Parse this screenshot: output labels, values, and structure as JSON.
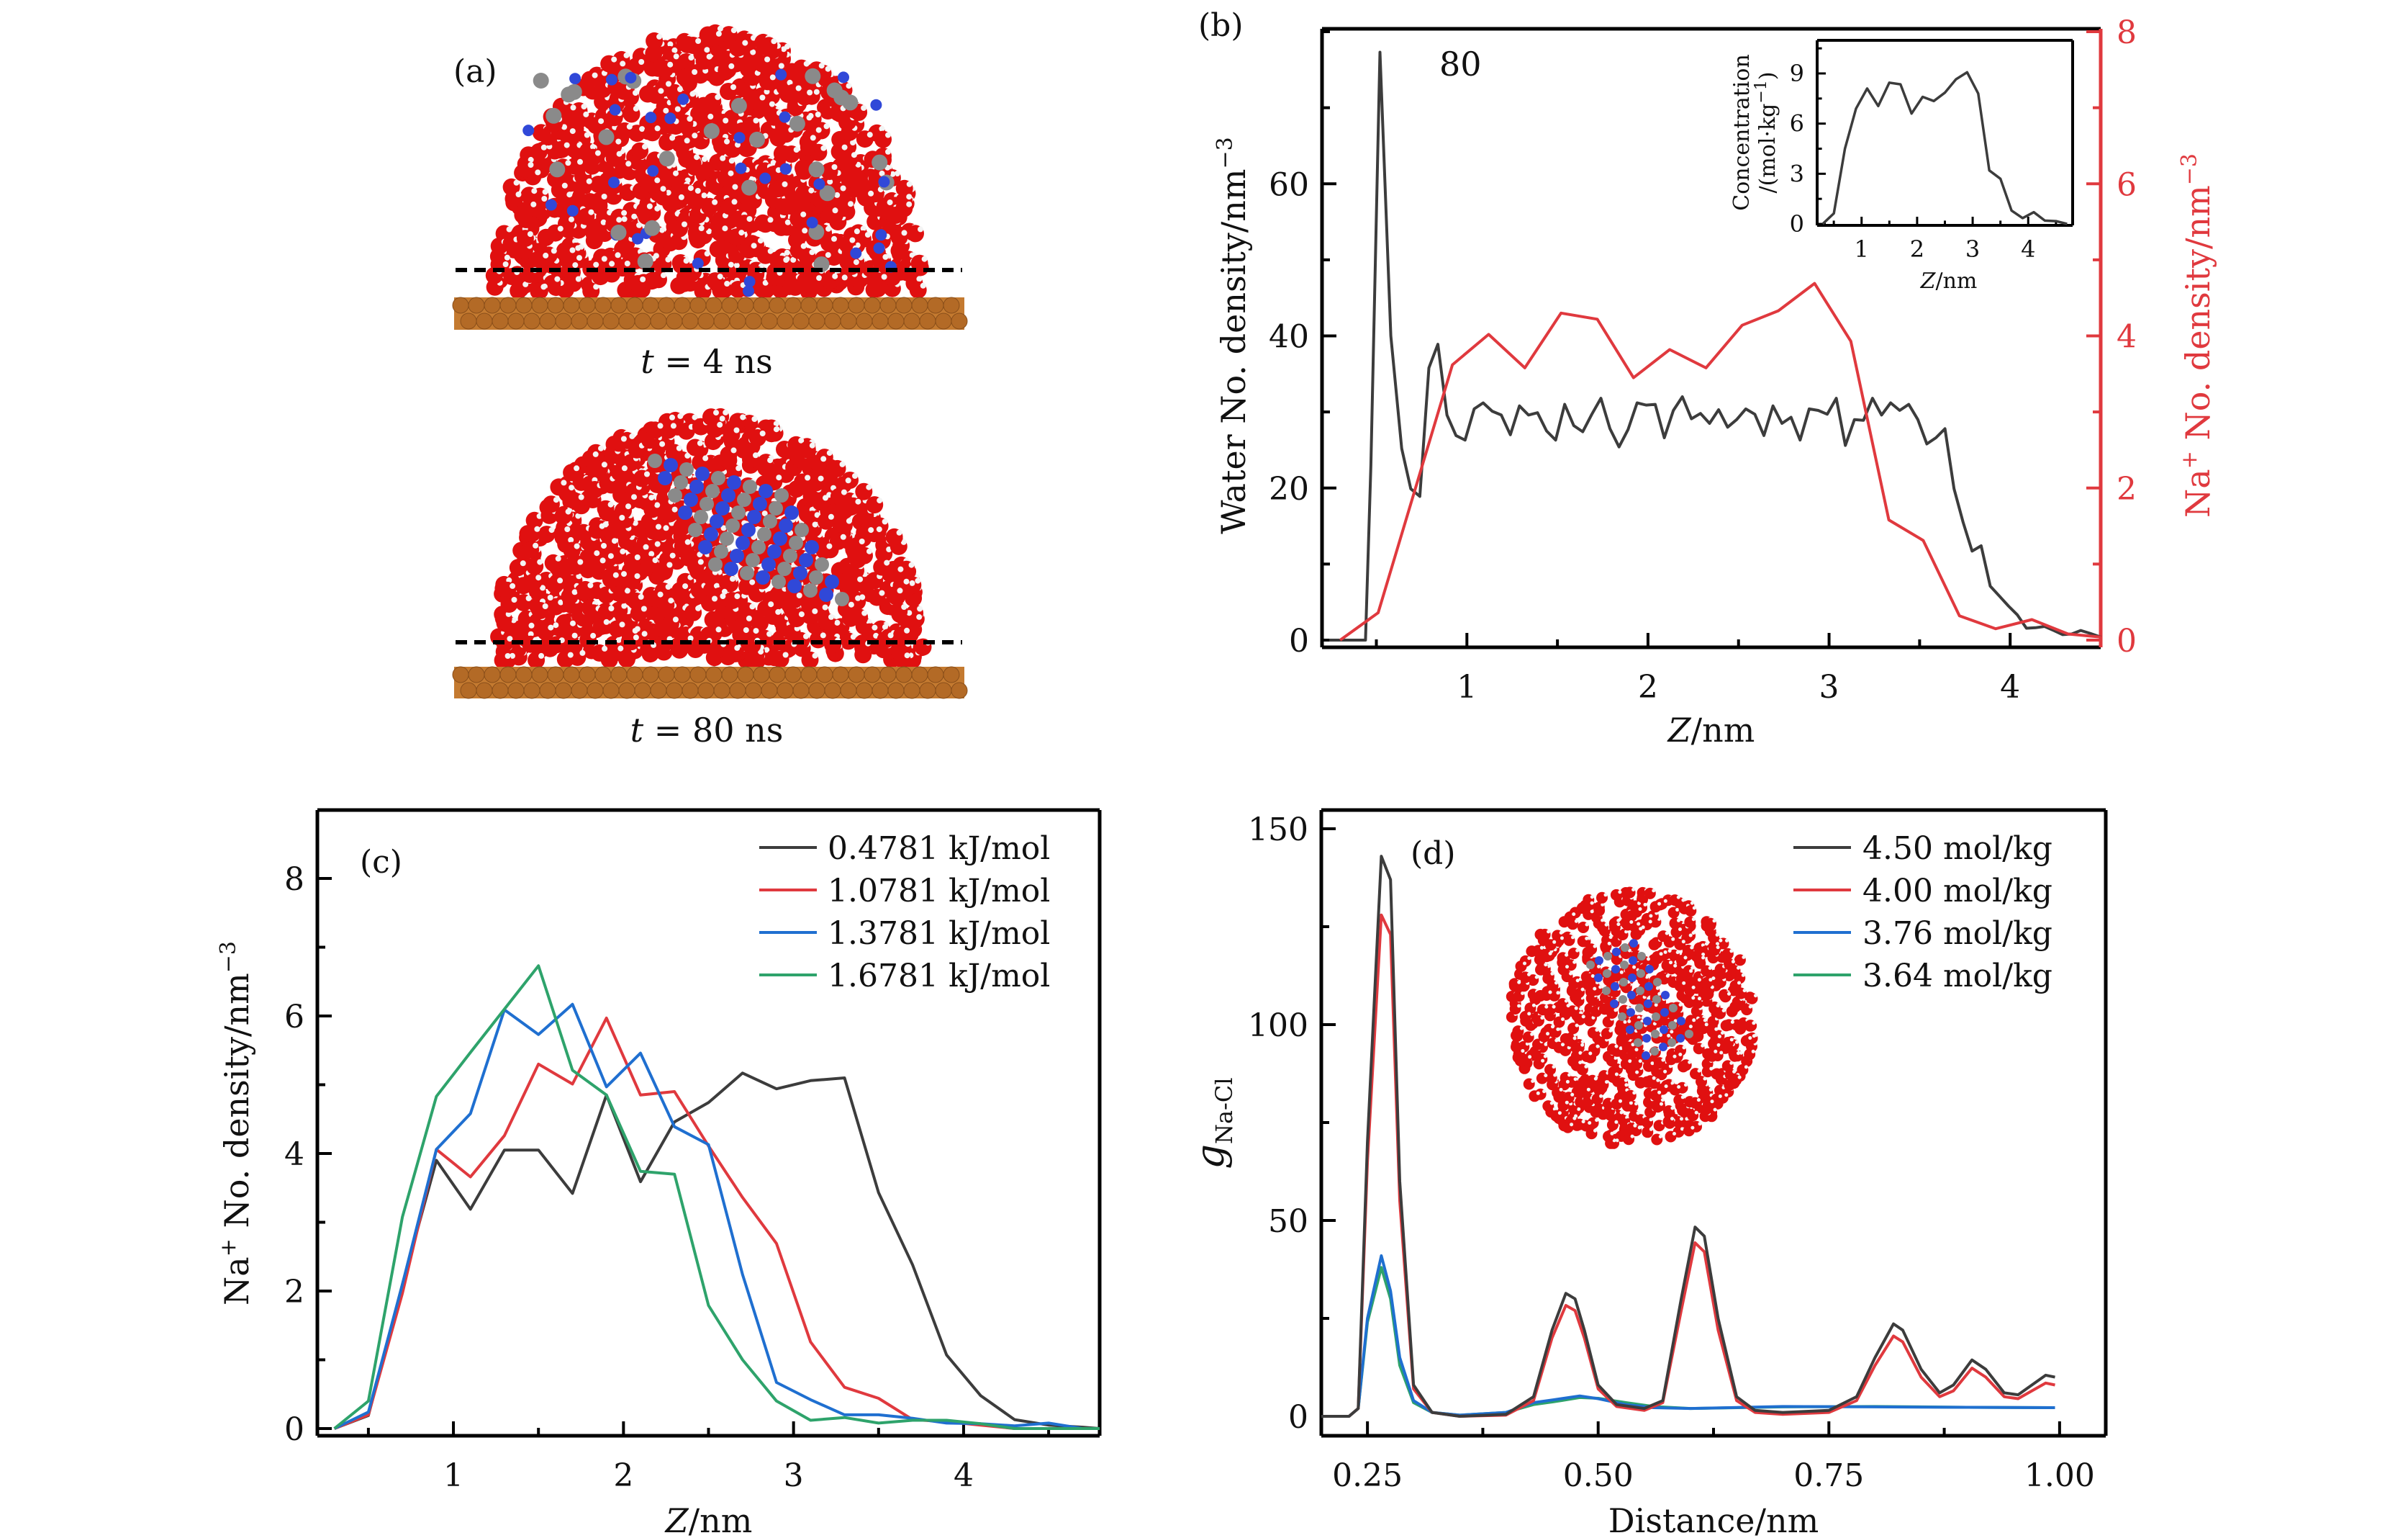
{
  "panels": {
    "a": {
      "label": "(a)",
      "snapshots": [
        {
          "caption_var": "t",
          "caption_rest": " = 4 ns",
          "description": "Salt solution droplet on copper substrate, ions dispersed"
        },
        {
          "caption_var": "t",
          "caption_rest": " = 80 ns",
          "description": "Salt solution droplet on copper substrate, crystalline NaCl cluster formed"
        }
      ],
      "atom_colors": {
        "oxygen": "#e01010",
        "hydrogen": "#f4f4f4",
        "sodium": "#3048d8",
        "chloride": "#8a8a8a",
        "copper": "#c47a30"
      }
    },
    "b": {
      "label": "(b)",
      "annotation": "80"
    },
    "c": {
      "label": "(c)"
    },
    "d": {
      "label": "(d)"
    }
  },
  "chart_data": [
    {
      "id": "b",
      "type": "line",
      "title": "",
      "xlabel_var": "Z",
      "xlabel_rest": "/nm",
      "ylabel": "Water No. density/nm",
      "ylabel_sup": "−3",
      "y2label_pre": "Na",
      "y2label_sup1": "+",
      "y2label": " No. density/nm",
      "y2label_sup": "−3",
      "xlim": [
        0.2,
        4.5
      ],
      "ylim": [
        -1.5,
        80
      ],
      "y2lim": [
        -0.15,
        8
      ],
      "xticks": [
        1,
        2,
        3,
        4
      ],
      "yticks": [
        0,
        20,
        40,
        60
      ],
      "y2ticks": [
        0,
        2,
        4,
        6,
        8
      ],
      "annotation": "80",
      "grid": false,
      "series": [
        {
          "name": "Water",
          "axis": "left",
          "color": "#3c3c3c",
          "x": [
            0.24,
            0.44,
            0.47,
            0.52,
            0.58,
            0.64,
            0.69,
            0.74,
            0.79,
            0.84,
            0.89,
            0.94,
            0.99,
            1.04,
            1.09,
            1.14,
            1.19,
            1.24,
            1.29,
            1.34,
            1.39,
            1.44,
            1.49,
            1.54,
            1.59,
            1.64,
            1.69,
            1.74,
            1.79,
            1.84,
            1.89,
            1.94,
            1.99,
            2.04,
            2.09,
            2.14,
            2.19,
            2.24,
            2.29,
            2.34,
            2.39,
            2.44,
            2.49,
            2.54,
            2.59,
            2.64,
            2.69,
            2.74,
            2.79,
            2.84,
            2.89,
            2.94,
            2.99,
            3.04,
            3.09,
            3.14,
            3.19,
            3.24,
            3.29,
            3.34,
            3.39,
            3.44,
            3.49,
            3.54,
            3.59,
            3.64,
            3.69,
            3.74,
            3.79,
            3.84,
            3.89,
            3.94,
            3.99,
            4.04,
            4.09,
            4.14,
            4.19,
            4.24,
            4.29,
            4.34,
            4.39,
            4.44,
            4.5
          ],
          "y": [
            0,
            0,
            23,
            77.3,
            40,
            25.2,
            19.9,
            18.9,
            35.8,
            38.9,
            29.6,
            26.9,
            26.3,
            30.4,
            31.2,
            30.1,
            29.6,
            27.0,
            30.8,
            29.6,
            29.9,
            27.5,
            26.3,
            31.0,
            28.2,
            27.4,
            29.7,
            31.8,
            27.8,
            25.4,
            27.7,
            31.2,
            30.9,
            31.0,
            26.6,
            30.2,
            32.0,
            29.1,
            29.8,
            28.5,
            30.3,
            28.0,
            29.0,
            30.4,
            29.7,
            26.9,
            30.8,
            28.5,
            29.3,
            26.3,
            30.4,
            30.2,
            29.7,
            31.8,
            25.6,
            29.0,
            28.9,
            31.8,
            29.6,
            31.2,
            30.2,
            31.0,
            29.0,
            25.8,
            26.6,
            27.8,
            19.9,
            15.5,
            11.7,
            12.4,
            7.1,
            5.8,
            4.5,
            3.3,
            1.56,
            1.63,
            1.8,
            1.27,
            0.72,
            0.8,
            1.27,
            0.9,
            0.4
          ]
        },
        {
          "name": "Na+",
          "axis": "right",
          "color": "#e0393e",
          "x": [
            0.3,
            0.51,
            0.92,
            1.12,
            1.32,
            1.52,
            1.72,
            1.92,
            2.12,
            2.32,
            2.52,
            2.72,
            2.92,
            3.12,
            3.33,
            3.52,
            3.72,
            3.92,
            4.12,
            4.32,
            4.5
          ],
          "y": [
            0,
            0.36,
            3.62,
            4.02,
            3.58,
            4.3,
            4.22,
            3.45,
            3.82,
            3.58,
            4.14,
            4.33,
            4.69,
            3.93,
            1.58,
            1.31,
            0.32,
            0.15,
            0.27,
            0.08,
            0.04
          ]
        }
      ],
      "inset": {
        "type": "line",
        "xlabel_var": "Z",
        "xlabel_rest": "/nm",
        "ylabel_line1": "Concentration",
        "ylabel_line2": "/(mol·kg",
        "ylabel_sup": "−1",
        "ylabel_close": ")",
        "xlim": [
          0.2,
          4.8
        ],
        "ylim": [
          0,
          11
        ],
        "xticks": [
          1,
          2,
          3,
          4
        ],
        "yticks": [
          0,
          3,
          6,
          9
        ],
        "series": [
          {
            "name": "Concentration",
            "color": "#3c3c3c",
            "x": [
              0.3,
              0.5,
              0.7,
              0.9,
              1.1,
              1.3,
              1.5,
              1.7,
              1.9,
              2.1,
              2.3,
              2.5,
              2.7,
              2.9,
              3.1,
              3.3,
              3.5,
              3.7,
              3.9,
              4.1,
              4.3,
              4.5,
              4.7
            ],
            "y": [
              0,
              0.63,
              4.5,
              6.9,
              8.1,
              7.05,
              8.45,
              8.35,
              6.6,
              7.6,
              7.35,
              7.85,
              8.65,
              9.07,
              7.8,
              3.2,
              2.7,
              0.8,
              0.35,
              0.7,
              0.2,
              0.17,
              0.0
            ]
          }
        ]
      }
    },
    {
      "id": "c",
      "type": "line",
      "xlabel_var": "Z",
      "xlabel_rest": "/nm",
      "ylabel_pre": "Na",
      "ylabel_sup1": "+",
      "ylabel": " No. density/nm",
      "ylabel_sup": "−3",
      "xlim": [
        0.2,
        4.8
      ],
      "ylim": [
        -0.1,
        9.0
      ],
      "xticks": [
        1,
        2,
        3,
        4
      ],
      "yticks": [
        0,
        2,
        4,
        6,
        8
      ],
      "legend_position": "top-right",
      "grid": false,
      "x": [
        0.3,
        0.5,
        0.7,
        0.9,
        1.1,
        1.3,
        1.5,
        1.7,
        1.9,
        2.1,
        2.3,
        2.5,
        2.7,
        2.9,
        3.1,
        3.3,
        3.5,
        3.7,
        3.9,
        4.1,
        4.3,
        4.5,
        4.7,
        4.8
      ],
      "series": [
        {
          "name": "0.4781 kJ/mol",
          "color": "#3c3c3c",
          "values": [
            0,
            0.19,
            2.1,
            3.9,
            3.19,
            4.05,
            4.05,
            3.42,
            4.85,
            3.59,
            4.46,
            4.74,
            5.17,
            4.94,
            5.06,
            5.1,
            3.43,
            2.38,
            1.07,
            0.48,
            0.13,
            0.05,
            0.02,
            0
          ]
        },
        {
          "name": "1.0781 kJ/mol",
          "color": "#e0393e",
          "values": [
            0,
            0.2,
            1.97,
            4.06,
            3.66,
            4.26,
            5.3,
            5.01,
            5.97,
            4.85,
            4.9,
            4.11,
            3.36,
            2.69,
            1.26,
            0.6,
            0.44,
            0.13,
            0.1,
            0.05,
            0.0,
            0.0,
            0.0,
            0
          ]
        },
        {
          "name": "1.3781 kJ/mol",
          "color": "#1f6fd0",
          "values": [
            0,
            0.24,
            2.1,
            4.06,
            4.58,
            6.09,
            5.73,
            6.17,
            4.97,
            5.46,
            4.39,
            4.13,
            2.24,
            0.67,
            0.42,
            0.2,
            0.2,
            0.15,
            0.08,
            0.07,
            0.04,
            0.08,
            0.0,
            0
          ]
        },
        {
          "name": "1.6781 kJ/mol",
          "color": "#2ea36b",
          "values": [
            0,
            0.4,
            3.08,
            4.83,
            5.47,
            6.1,
            6.73,
            5.21,
            4.85,
            3.74,
            3.7,
            1.79,
            1.0,
            0.4,
            0.12,
            0.16,
            0.08,
            0.12,
            0.12,
            0.07,
            0.0,
            0.0,
            0.0,
            0
          ]
        }
      ]
    },
    {
      "id": "d",
      "type": "line",
      "xlabel": "Distance/nm",
      "ylabel_var": "g",
      "ylabel_sub": "Na-Cl",
      "xlim": [
        0.2,
        1.05
      ],
      "ylim": [
        -5,
        155
      ],
      "xticks": [
        0.25,
        0.5,
        0.75,
        1.0
      ],
      "xtick_labels": [
        "0.25",
        "0.50",
        "0.75",
        "1.00"
      ],
      "yticks": [
        0,
        50,
        100,
        150
      ],
      "legend_position": "top-right",
      "grid": false,
      "inset_description": "Top view snapshot of droplet with NaCl crystal",
      "series": [
        {
          "name": "4.50 mol/kg",
          "color": "#3c3c3c",
          "x": [
            0.2,
            0.23,
            0.24,
            0.25,
            0.265,
            0.275,
            0.285,
            0.3,
            0.32,
            0.35,
            0.4,
            0.43,
            0.45,
            0.465,
            0.475,
            0.485,
            0.5,
            0.52,
            0.55,
            0.57,
            0.59,
            0.605,
            0.615,
            0.63,
            0.65,
            0.67,
            0.7,
            0.75,
            0.78,
            0.8,
            0.82,
            0.83,
            0.85,
            0.87,
            0.885,
            0.905,
            0.92,
            0.94,
            0.955,
            0.97,
            0.985,
            0.995
          ],
          "y": [
            0,
            0,
            2,
            70,
            143,
            137,
            60,
            8,
            1,
            0,
            0.5,
            5,
            22,
            31.4,
            30,
            22,
            8,
            3,
            2,
            4,
            30,
            48.3,
            46,
            25,
            5,
            1.5,
            1,
            1.5,
            5,
            15,
            23.6,
            22,
            12,
            6,
            8,
            14.4,
            12,
            6,
            5.5,
            8,
            10.5,
            10
          ]
        },
        {
          "name": "4.00 mol/kg",
          "color": "#e0393e",
          "x": [
            0.2,
            0.23,
            0.24,
            0.25,
            0.265,
            0.275,
            0.285,
            0.3,
            0.32,
            0.35,
            0.4,
            0.43,
            0.45,
            0.465,
            0.475,
            0.485,
            0.5,
            0.52,
            0.55,
            0.57,
            0.59,
            0.605,
            0.615,
            0.63,
            0.65,
            0.67,
            0.7,
            0.75,
            0.78,
            0.8,
            0.82,
            0.83,
            0.85,
            0.87,
            0.885,
            0.905,
            0.92,
            0.94,
            0.955,
            0.97,
            0.985,
            0.995
          ],
          "y": [
            0,
            0,
            2,
            65,
            128,
            123,
            55,
            7,
            1,
            0,
            0.3,
            4,
            20,
            28.3,
            27,
            20,
            7,
            2.5,
            1.5,
            3.5,
            27,
            44.3,
            42,
            22,
            4,
            1,
            0.5,
            1,
            4,
            13,
            20.5,
            19,
            10,
            5,
            6.5,
            12.3,
            10,
            5,
            4.5,
            6.5,
            8.5,
            8
          ]
        },
        {
          "name": "3.76 mol/kg",
          "color": "#1f6fd0",
          "x": [
            0.2,
            0.23,
            0.24,
            0.25,
            0.265,
            0.275,
            0.285,
            0.3,
            0.32,
            0.35,
            0.4,
            0.43,
            0.46,
            0.48,
            0.5,
            0.53,
            0.56,
            0.6,
            0.7,
            0.8,
            0.9,
            0.995
          ],
          "y": [
            0,
            0,
            2,
            25,
            41,
            32,
            15,
            4,
            1,
            0.3,
            1,
            3.5,
            4.5,
            5.2,
            4.5,
            3,
            2.2,
            2,
            2.5,
            2.4,
            2.3,
            2.2
          ]
        },
        {
          "name": "3.64 mol/kg",
          "color": "#2ea36b",
          "x": [
            0.2,
            0.23,
            0.24,
            0.25,
            0.265,
            0.275,
            0.285,
            0.3,
            0.32,
            0.35,
            0.4,
            0.43,
            0.46,
            0.48,
            0.5,
            0.53,
            0.56,
            0.6,
            0.7,
            0.8,
            0.9,
            0.995
          ],
          "y": [
            0,
            0,
            2,
            24,
            38,
            30,
            13,
            3.5,
            1,
            0.3,
            1,
            3,
            4,
            4.8,
            4.6,
            3.5,
            2.5,
            2,
            2.4,
            2.5,
            2.3,
            2.2
          ]
        }
      ]
    }
  ]
}
